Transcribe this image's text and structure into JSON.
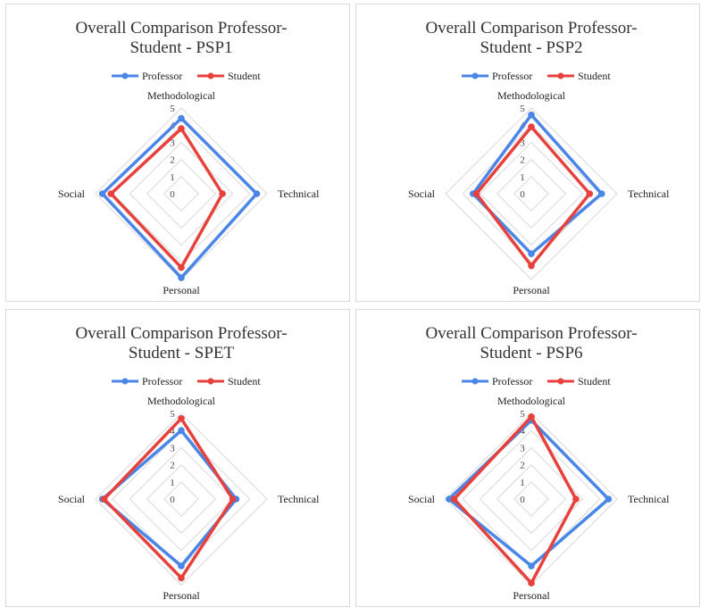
{
  "colors": {
    "professor": "#4a86e8",
    "student": "#e8413c",
    "grid": "#d9d9d9"
  },
  "chart_data": [
    {
      "type": "radar",
      "title_lines": [
        "Overall Comparison Professor-",
        "Student - PSP1"
      ],
      "axes": [
        "Methodological",
        "Technical",
        "Personal",
        "Social"
      ],
      "ticks": [
        "0",
        "1",
        "2",
        "3",
        "4",
        "5"
      ],
      "rlim": [
        0,
        5
      ],
      "legend_position": "top",
      "series": [
        {
          "name": "Professor",
          "values": [
            4.4,
            4.4,
            4.9,
            4.6
          ]
        },
        {
          "name": "Student",
          "values": [
            3.8,
            2.4,
            4.3,
            4.1
          ]
        }
      ]
    },
    {
      "type": "radar",
      "title_lines": [
        "Overall Comparison Professor-",
        "Student - PSP2"
      ],
      "axes": [
        "Methodological",
        "Technical",
        "Personal",
        "Social"
      ],
      "ticks": [
        "0",
        "1",
        "2",
        "3",
        "4",
        "5"
      ],
      "rlim": [
        0,
        5
      ],
      "legend_position": "top",
      "series": [
        {
          "name": "Professor",
          "values": [
            4.6,
            4.1,
            3.5,
            3.4
          ]
        },
        {
          "name": "Student",
          "values": [
            3.9,
            3.4,
            4.2,
            3.2
          ]
        }
      ]
    },
    {
      "type": "radar",
      "title_lines": [
        "Overall Comparison Professor-",
        "Student - SPET"
      ],
      "axes": [
        "Methodological",
        "Technical",
        "Personal",
        "Social"
      ],
      "ticks": [
        "0",
        "1",
        "2",
        "3",
        "4",
        "5"
      ],
      "rlim": [
        0,
        5
      ],
      "legend_position": "top",
      "series": [
        {
          "name": "Professor",
          "values": [
            4.0,
            3.2,
            3.9,
            4.6
          ]
        },
        {
          "name": "Student",
          "values": [
            4.7,
            3.0,
            4.6,
            4.5
          ]
        }
      ]
    },
    {
      "type": "radar",
      "title_lines": [
        "Overall Comparison Professor-",
        "Student - PSP6"
      ],
      "axes": [
        "Methodological",
        "Technical",
        "Personal",
        "Social"
      ],
      "ticks": [
        "0",
        "1",
        "2",
        "3",
        "4",
        "5"
      ],
      "rlim": [
        0,
        5
      ],
      "legend_position": "top",
      "series": [
        {
          "name": "Professor",
          "values": [
            4.6,
            4.5,
            3.9,
            4.8
          ]
        },
        {
          "name": "Student",
          "values": [
            4.8,
            2.6,
            4.9,
            4.5
          ]
        }
      ]
    }
  ]
}
